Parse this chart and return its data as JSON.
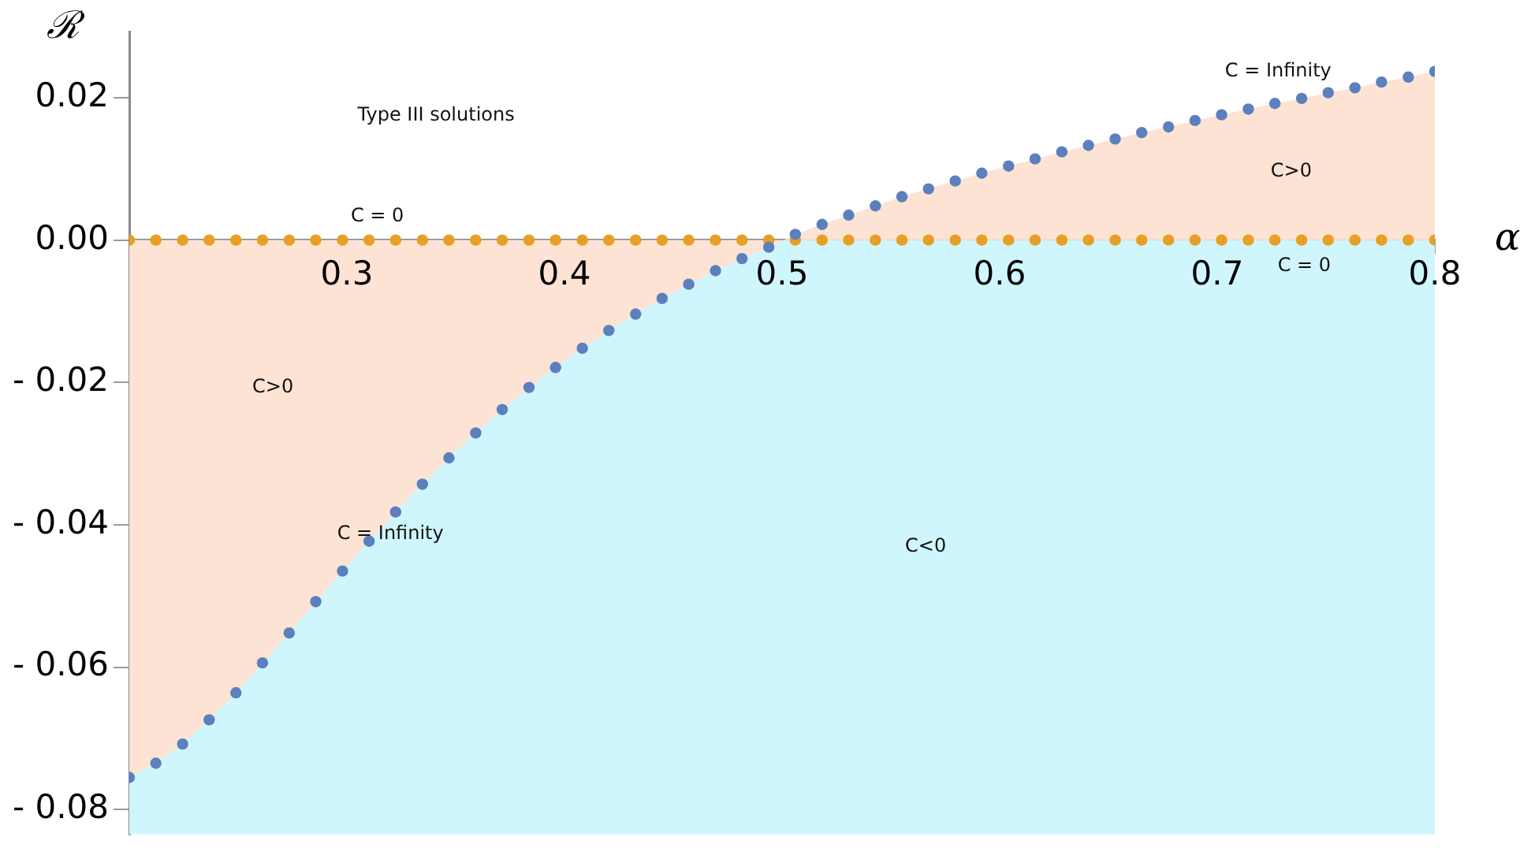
{
  "chart_data": {
    "type": "scatter",
    "xlabel": "α",
    "ylabel": "ℛ",
    "x": [
      0.2,
      0.2122,
      0.2245,
      0.2367,
      0.249,
      0.2612,
      0.2735,
      0.2857,
      0.298,
      0.3102,
      0.3224,
      0.3347,
      0.3469,
      0.3592,
      0.3714,
      0.3837,
      0.3959,
      0.4082,
      0.4204,
      0.4327,
      0.4449,
      0.4571,
      0.4694,
      0.4816,
      0.4939,
      0.5061,
      0.5184,
      0.5306,
      0.5429,
      0.5551,
      0.5673,
      0.5796,
      0.5918,
      0.6041,
      0.6163,
      0.6286,
      0.6408,
      0.6531,
      0.6653,
      0.6776,
      0.6898,
      0.702,
      0.7143,
      0.7265,
      0.7388,
      0.751,
      0.7633,
      0.7755,
      0.7878,
      0.8
    ],
    "series": [
      {
        "type": "area",
        "color": "#fde3d4",
        "marker": "none",
        "values": [
          -0.0755,
          -0.0735,
          -0.0708,
          -0.0674,
          -0.0636,
          -0.0594,
          -0.0552,
          -0.0508,
          -0.0465,
          -0.0423,
          -0.0382,
          -0.0343,
          -0.0306,
          -0.0271,
          -0.0238,
          -0.0207,
          -0.0179,
          -0.0152,
          -0.0127,
          -0.0104,
          -0.0082,
          -0.0062,
          -0.0043,
          -0.0026,
          -0.001,
          0.0008,
          0.0022,
          0.0035,
          0.0048,
          0.0061,
          0.0072,
          0.0083,
          0.0094,
          0.0104,
          0.0114,
          0.0124,
          0.0133,
          0.0142,
          0.0151,
          0.0159,
          0.0168,
          0.0176,
          0.0184,
          0.0192,
          0.0199,
          0.0207,
          0.0214,
          0.0222,
          0.0229,
          0.0237
        ]
      },
      {
        "color": "#5b80bd",
        "values": [
          -0.0755,
          -0.0735,
          -0.0708,
          -0.0674,
          -0.0636,
          -0.0594,
          -0.0552,
          -0.0508,
          -0.0465,
          -0.0423,
          -0.0382,
          -0.0343,
          -0.0306,
          -0.0271,
          -0.0238,
          -0.0207,
          -0.0179,
          -0.0152,
          -0.0127,
          -0.0104,
          -0.0082,
          -0.0062,
          -0.0043,
          -0.0026,
          -0.001,
          0.0008,
          0.0022,
          0.0035,
          0.0048,
          0.0061,
          0.0072,
          0.0083,
          0.0094,
          0.0104,
          0.0114,
          0.0124,
          0.0133,
          0.0142,
          0.0151,
          0.0159,
          0.0168,
          0.0176,
          0.0184,
          0.0192,
          0.0199,
          0.0207,
          0.0214,
          0.0222,
          0.0229,
          0.0237
        ]
      },
      {
        "type": "scatter",
        "color": "#e6a024",
        "values": [
          0,
          0,
          0,
          0,
          0,
          0,
          0,
          0,
          0,
          0,
          0,
          0,
          0,
          0,
          0,
          0,
          0,
          0,
          0,
          0,
          0,
          0,
          0,
          0,
          0,
          0,
          0,
          0,
          0,
          0,
          0,
          0,
          0,
          0,
          0,
          0,
          0,
          0,
          0,
          0,
          0,
          0,
          0,
          0,
          0,
          0,
          0,
          0,
          0,
          0
        ]
      }
    ],
    "bands": [
      {
        "axis": "y",
        "from": -0.0835,
        "to": 0,
        "color": "#d0f6fd"
      }
    ],
    "xlim": [
      0.2,
      0.8
    ],
    "xticks": [
      0.3,
      0.4,
      0.5,
      0.6,
      0.7,
      0.8
    ],
    "ylim": [
      -0.0835,
      0.0293
    ],
    "yticks": [
      {
        "value": -0.08,
        "label": "- 0.08"
      },
      {
        "value": -0.06,
        "label": "- 0.06"
      },
      {
        "value": -0.04,
        "label": "- 0.04"
      },
      {
        "value": -0.02,
        "label": "- 0.02"
      },
      {
        "value": 0,
        "label": "0.00"
      },
      {
        "value": 0.02,
        "label": "0.02"
      }
    ],
    "marker": "circle",
    "grid": false,
    "legend": false,
    "annotations": [
      "Type III solutions",
      "C = 0",
      "C = Infinity",
      "C>0",
      "C = 0",
      "C>0",
      "C = Infinity",
      "C<0"
    ]
  }
}
